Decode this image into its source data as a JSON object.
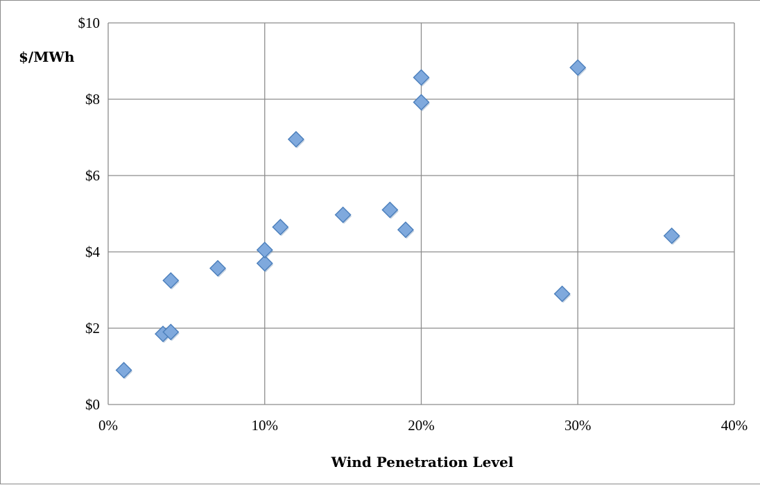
{
  "chart_data": {
    "type": "scatter",
    "title": "",
    "xlabel": "Wind Penetration Level",
    "ylabel": "$/MWh",
    "xlim": [
      0,
      0.4
    ],
    "ylim": [
      0,
      10
    ],
    "x_ticks": [
      0,
      0.1,
      0.2,
      0.3,
      0.4
    ],
    "x_tick_labels": [
      "0%",
      "10%",
      "20%",
      "30%",
      "40%"
    ],
    "y_ticks": [
      0,
      2,
      4,
      6,
      8,
      10
    ],
    "y_tick_labels": [
      "$0",
      "$2",
      "$4",
      "$6",
      "$8",
      "$10"
    ],
    "grid": true,
    "marker": "diamond",
    "marker_color": "#7fa9dd",
    "marker_edge_color": "#4a7ebb",
    "points": [
      {
        "x": 0.01,
        "y": 0.9
      },
      {
        "x": 0.035,
        "y": 1.85
      },
      {
        "x": 0.04,
        "y": 1.9
      },
      {
        "x": 0.04,
        "y": 3.25
      },
      {
        "x": 0.07,
        "y": 3.57
      },
      {
        "x": 0.1,
        "y": 3.7
      },
      {
        "x": 0.1,
        "y": 4.05
      },
      {
        "x": 0.11,
        "y": 4.65
      },
      {
        "x": 0.12,
        "y": 6.95
      },
      {
        "x": 0.15,
        "y": 4.97
      },
      {
        "x": 0.18,
        "y": 5.1
      },
      {
        "x": 0.19,
        "y": 4.58
      },
      {
        "x": 0.2,
        "y": 7.92
      },
      {
        "x": 0.2,
        "y": 8.57
      },
      {
        "x": 0.29,
        "y": 2.9
      },
      {
        "x": 0.3,
        "y": 8.83
      },
      {
        "x": 0.36,
        "y": 4.42
      }
    ]
  }
}
